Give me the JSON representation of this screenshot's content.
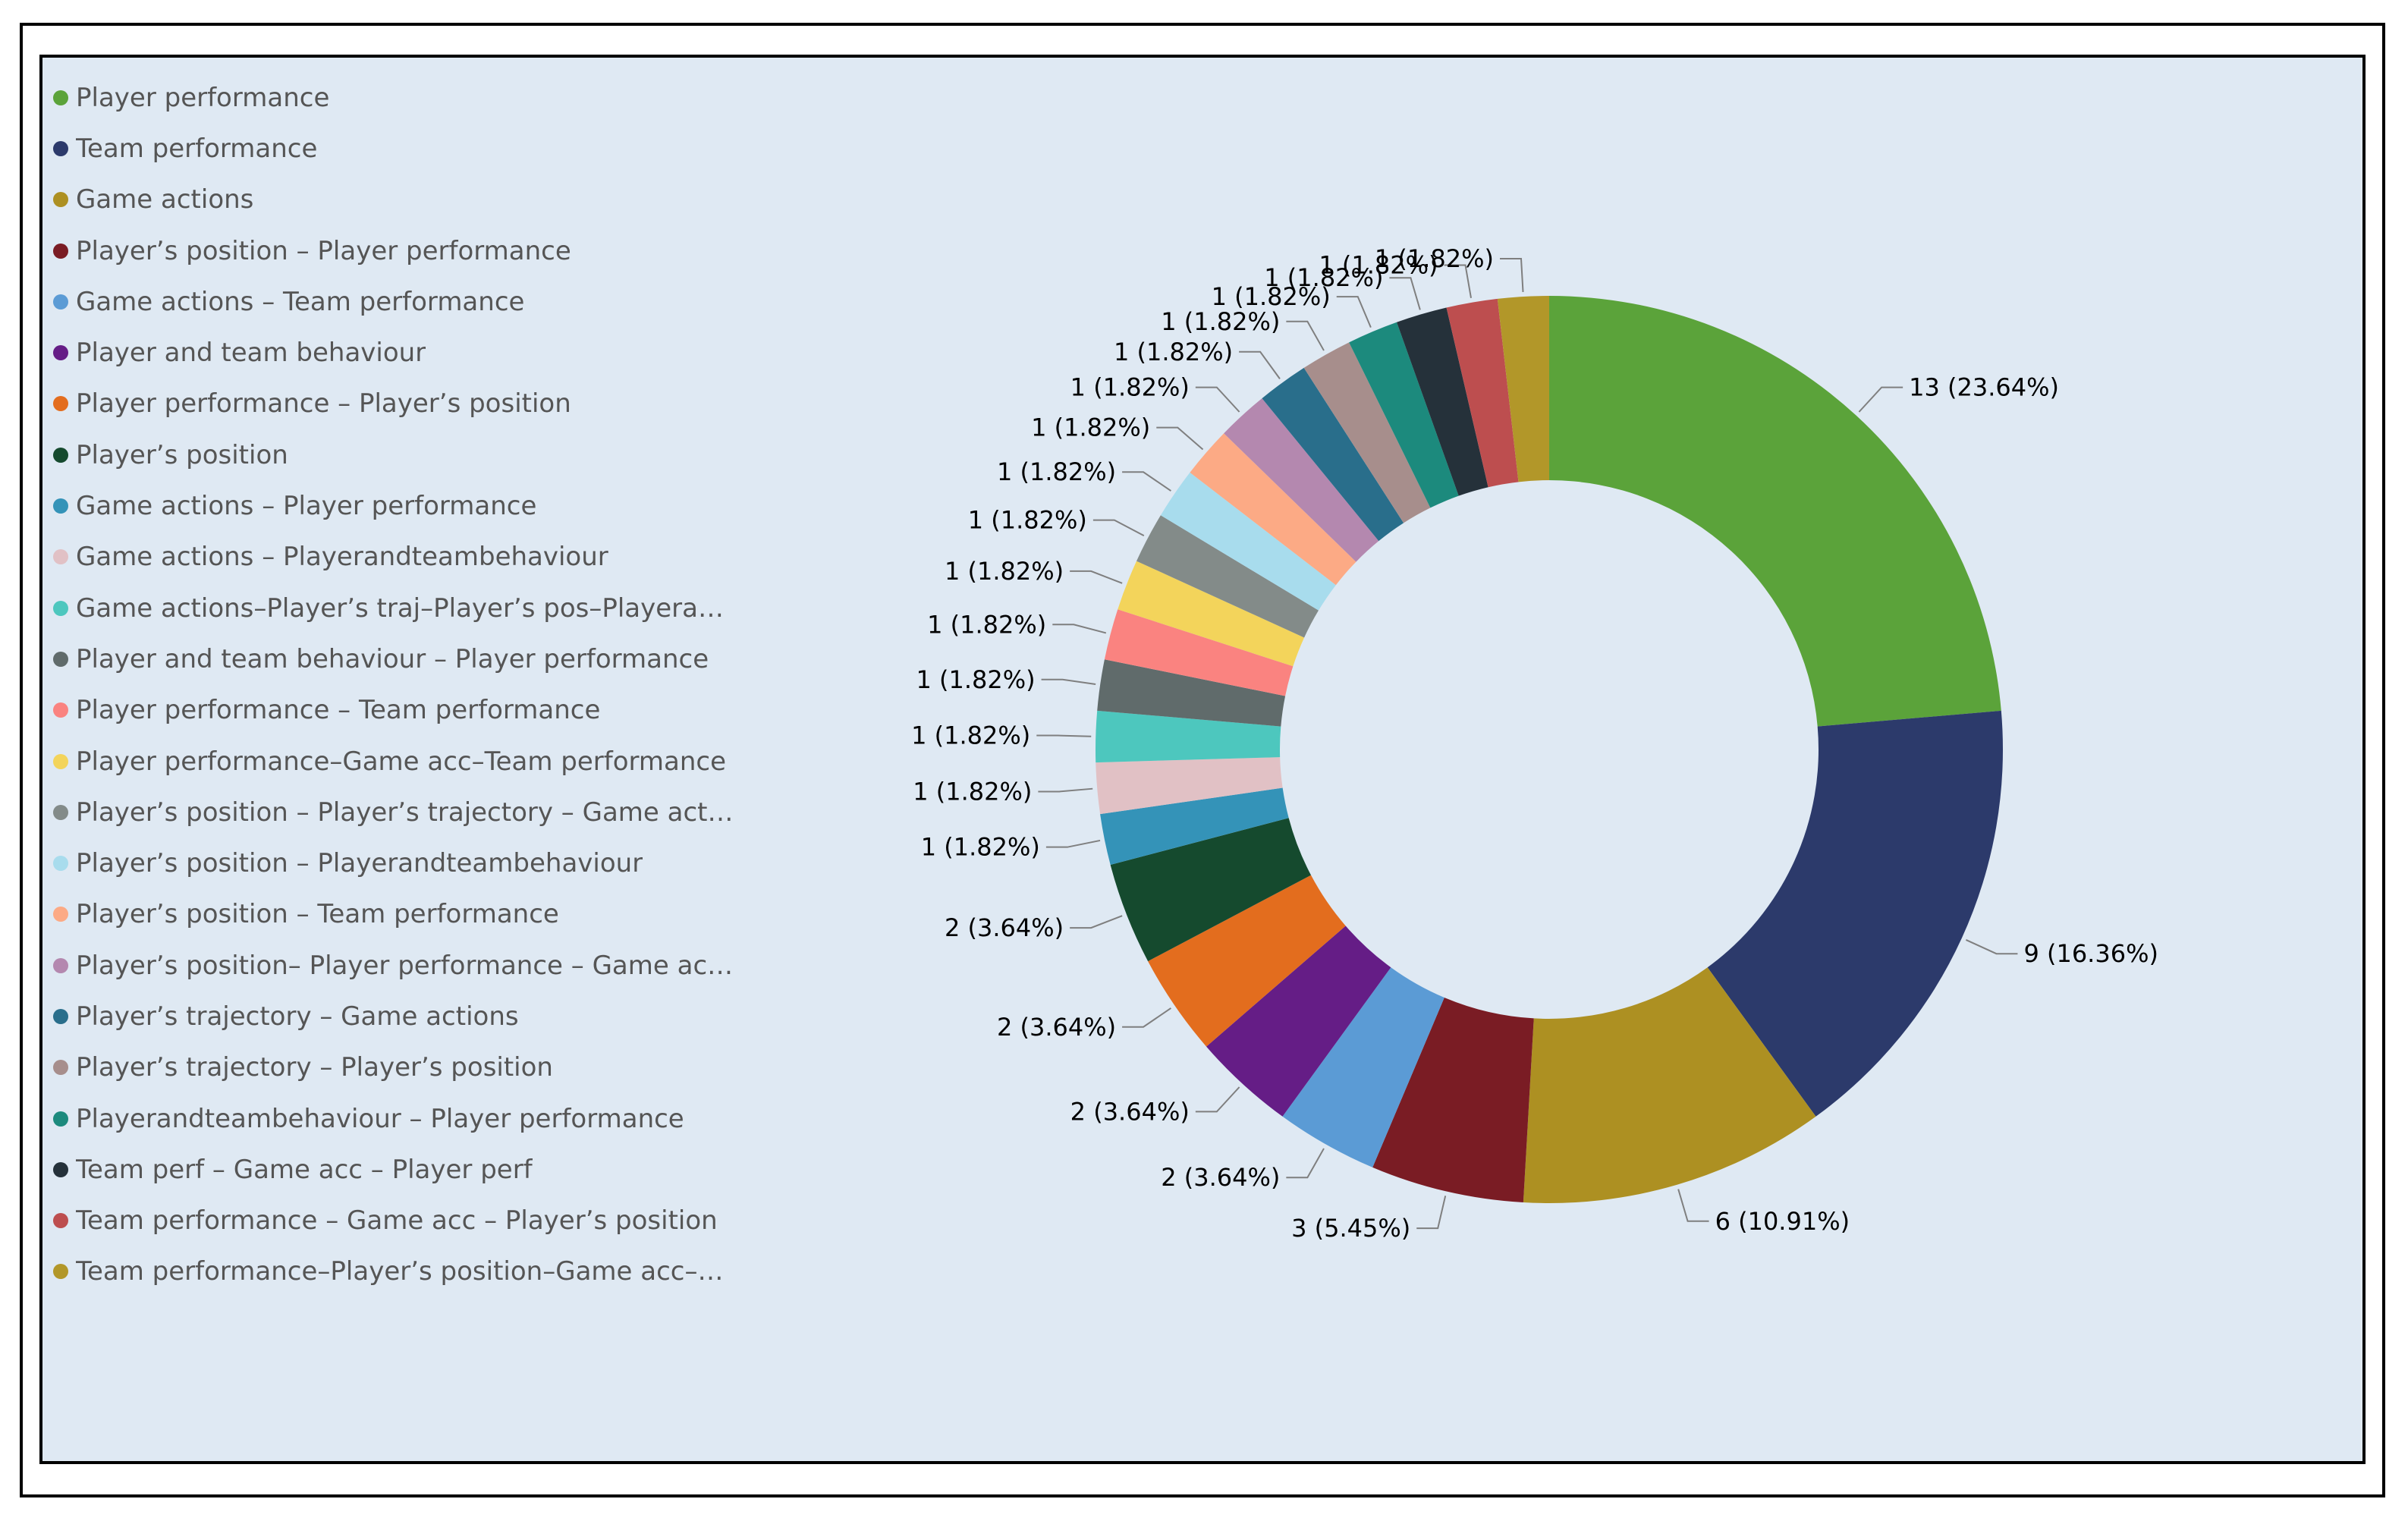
{
  "chart_data": {
    "type": "pie",
    "variant": "donut",
    "total": 55,
    "legend_position": "left",
    "slices": [
      {
        "label": "Player performance",
        "value": 13,
        "percent": "23.64%",
        "color": "#5ba33a",
        "data_label": "13 (23.64%)"
      },
      {
        "label": "Team performance",
        "value": 9,
        "percent": "16.36%",
        "color": "#2c3a6b",
        "data_label": "9 (16.36%)"
      },
      {
        "label": "Game actions",
        "value": 6,
        "percent": "10.91%",
        "color": "#ad9022",
        "data_label": "6 (10.91%)"
      },
      {
        "label": "Player’s position – Player performance",
        "value": 3,
        "percent": "5.45%",
        "color": "#7a1c24",
        "data_label": "3 (5.45%)"
      },
      {
        "label": "Game actions – Team performance",
        "value": 2,
        "percent": "3.64%",
        "color": "#5b9bd5",
        "data_label": "2 (3.64%)"
      },
      {
        "label": "Player and team behaviour",
        "value": 2,
        "percent": "3.64%",
        "color": "#651d86",
        "data_label": "2 (3.64%)"
      },
      {
        "label": "Player performance – Player’s position",
        "value": 2,
        "percent": "3.64%",
        "color": "#e36d1e",
        "data_label": "2 (3.64%)"
      },
      {
        "label": "Player’s position",
        "value": 2,
        "percent": "3.64%",
        "color": "#154a2e",
        "data_label": "2 (3.64%)"
      },
      {
        "label": "Game actions – Player performance",
        "value": 1,
        "percent": "1.82%",
        "color": "#3493b8",
        "data_label": "1 (1.82%)"
      },
      {
        "label": "Game actions – Playerandteambehaviour",
        "value": 1,
        "percent": "1.82%",
        "color": "#e1c1c5",
        "data_label": "1 (1.82%)"
      },
      {
        "label": "Game actions–Player’s traj–Player’s pos–Playerand…",
        "value": 1,
        "percent": "1.82%",
        "color": "#4dc7be",
        "data_label": "1 (1.82%)"
      },
      {
        "label": "Player and team behaviour – Player performance",
        "value": 1,
        "percent": "1.82%",
        "color": "#606b6b",
        "data_label": "1 (1.82%)"
      },
      {
        "label": "Player performance – Team performance",
        "value": 1,
        "percent": "1.82%",
        "color": "#fa8380",
        "data_label": "1 (1.82%)"
      },
      {
        "label": "Player performance–Game acc–Team performance",
        "value": 1,
        "percent": "1.82%",
        "color": "#f3d45b",
        "data_label": "1 (1.82%)"
      },
      {
        "label": "Player’s position – Player’s trajectory – Game actio…",
        "value": 1,
        "percent": "1.82%",
        "color": "#838b89",
        "data_label": "1 (1.82%)"
      },
      {
        "label": "Player’s position – Playerandteambehaviour",
        "value": 1,
        "percent": "1.82%",
        "color": "#a8dced",
        "data_label": "1 (1.82%)"
      },
      {
        "label": "Player’s position – Team performance",
        "value": 1,
        "percent": "1.82%",
        "color": "#fcaa85",
        "data_label": "1 (1.82%)"
      },
      {
        "label": "Player’s position– Player performance – Game acti…",
        "value": 1,
        "percent": "1.82%",
        "color": "#b488af",
        "data_label": "1 (1.82%)"
      },
      {
        "label": "Player’s trajectory – Game actions",
        "value": 1,
        "percent": "1.82%",
        "color": "#296e8b",
        "data_label": "1 (1.82%)"
      },
      {
        "label": "Player’s trajectory – Player’s position",
        "value": 1,
        "percent": "1.82%",
        "color": "#a78e8c",
        "data_label": "1 (1.82%)"
      },
      {
        "label": "Playerandteambehaviour – Player performance",
        "value": 1,
        "percent": "1.82%",
        "color": "#1c8a7d",
        "data_label": "1 (1.82%)"
      },
      {
        "label": "Team perf – Game acc – Player perf",
        "value": 1,
        "percent": "1.82%",
        "color": "#25313a",
        "data_label": "1 (1.82%)"
      },
      {
        "label": "Team performance – Game acc – Player’s position",
        "value": 1,
        "percent": "1.82%",
        "color": "#bd4e4f",
        "data_label": "1 (1.82%)"
      },
      {
        "label": "Team performance–Player’s position–Game acc–Pl…",
        "value": 1,
        "percent": "1.82%",
        "color": "#b29729",
        "data_label": "1 (1.82%)"
      }
    ]
  }
}
